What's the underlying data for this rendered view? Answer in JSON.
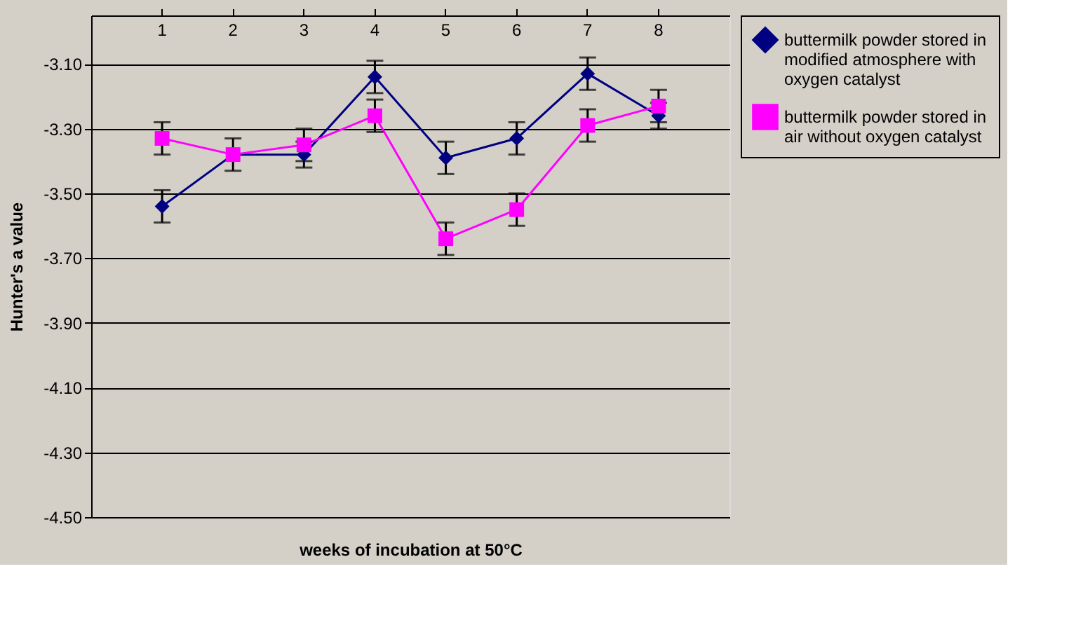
{
  "chart_data": {
    "type": "line",
    "xlabel": "weeks of incubation at 50°C",
    "ylabel": "Hunter's a value",
    "categories": [
      "1",
      "2",
      "3",
      "4",
      "5",
      "6",
      "7",
      "8"
    ],
    "series": [
      {
        "name": "buttermilk powder stored in modified atmosphere with oxygen catalyst",
        "color": "#000080",
        "marker": "diamond",
        "values": [
          -3.54,
          -3.38,
          -3.38,
          -3.14,
          -3.39,
          -3.33,
          -3.13,
          -3.26
        ],
        "errors": [
          0.05,
          null,
          0.04,
          0.05,
          0.05,
          0.05,
          0.05,
          0.04
        ]
      },
      {
        "name": "buttermilk powder stored in air without oxygen catalyst",
        "color": "#ff00ff",
        "marker": "square",
        "values": [
          -3.33,
          -3.38,
          -3.35,
          -3.26,
          -3.64,
          -3.55,
          -3.29,
          -3.23
        ],
        "errors": [
          0.05,
          0.05,
          0.05,
          0.05,
          0.05,
          0.05,
          0.05,
          0.05
        ]
      }
    ],
    "ylim": [
      -4.5,
      -2.95
    ],
    "yticks": [
      {
        "value": -4.5,
        "label": "-4.50"
      },
      {
        "value": -4.3,
        "label": "-4.30"
      },
      {
        "value": -4.1,
        "label": "-4.10"
      },
      {
        "value": -3.9,
        "label": "-3.90"
      },
      {
        "value": -3.7,
        "label": "-3.70"
      },
      {
        "value": -3.5,
        "label": "-3.50"
      },
      {
        "value": -3.3,
        "label": "-3.30"
      },
      {
        "value": -3.1,
        "label": "-3.10"
      }
    ],
    "grid": "y",
    "legend": "right",
    "line_style": "solid"
  }
}
